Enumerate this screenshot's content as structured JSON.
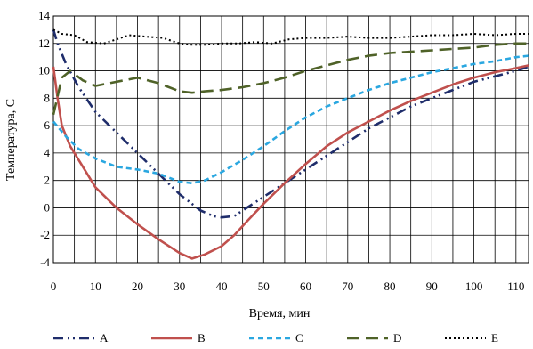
{
  "chart_data": {
    "type": "line",
    "title": "",
    "xlabel": "Время, мин",
    "ylabel": "Температура, С",
    "xlim": [
      0,
      113
    ],
    "ylim": [
      -4,
      14
    ],
    "x_ticks": [
      0,
      10,
      20,
      30,
      40,
      50,
      60,
      70,
      80,
      90,
      100,
      110
    ],
    "y_ticks": [
      -4,
      -2,
      0,
      2,
      4,
      6,
      8,
      10,
      12,
      14
    ],
    "grid": true,
    "legend_position": "bottom",
    "series": [
      {
        "name": "A",
        "color": "#1f2d6b",
        "dash": "dash-dot-dot",
        "points": [
          [
            0,
            13.0
          ],
          [
            1,
            12.0
          ],
          [
            3,
            10.5
          ],
          [
            6,
            8.8
          ],
          [
            10,
            7.0
          ],
          [
            15,
            5.5
          ],
          [
            20,
            4.0
          ],
          [
            25,
            2.5
          ],
          [
            30,
            1.0
          ],
          [
            35,
            -0.2
          ],
          [
            38,
            -0.6
          ],
          [
            40,
            -0.7
          ],
          [
            43,
            -0.6
          ],
          [
            46,
            0.0
          ],
          [
            50,
            0.8
          ],
          [
            55,
            1.8
          ],
          [
            60,
            2.8
          ],
          [
            65,
            3.8
          ],
          [
            70,
            4.8
          ],
          [
            75,
            5.8
          ],
          [
            80,
            6.6
          ],
          [
            85,
            7.4
          ],
          [
            90,
            8.0
          ],
          [
            95,
            8.6
          ],
          [
            100,
            9.2
          ],
          [
            105,
            9.6
          ],
          [
            110,
            10.0
          ],
          [
            113,
            10.3
          ]
        ]
      },
      {
        "name": "B",
        "color": "#c0504d",
        "dash": "solid",
        "points": [
          [
            0,
            10.3
          ],
          [
            1,
            8.0
          ],
          [
            2,
            6.0
          ],
          [
            4,
            4.5
          ],
          [
            7,
            3.0
          ],
          [
            10,
            1.5
          ],
          [
            15,
            0.0
          ],
          [
            20,
            -1.2
          ],
          [
            25,
            -2.3
          ],
          [
            30,
            -3.3
          ],
          [
            33,
            -3.7
          ],
          [
            36,
            -3.4
          ],
          [
            40,
            -2.8
          ],
          [
            43,
            -2.0
          ],
          [
            46,
            -1.0
          ],
          [
            50,
            0.3
          ],
          [
            55,
            1.8
          ],
          [
            60,
            3.2
          ],
          [
            65,
            4.5
          ],
          [
            70,
            5.5
          ],
          [
            75,
            6.3
          ],
          [
            80,
            7.1
          ],
          [
            85,
            7.8
          ],
          [
            90,
            8.4
          ],
          [
            95,
            9.0
          ],
          [
            100,
            9.5
          ],
          [
            105,
            9.9
          ],
          [
            110,
            10.2
          ],
          [
            113,
            10.4
          ]
        ]
      },
      {
        "name": "C",
        "color": "#2aa7e0",
        "dash": "dashed",
        "points": [
          [
            0,
            6.3
          ],
          [
            3,
            5.2
          ],
          [
            6,
            4.3
          ],
          [
            10,
            3.6
          ],
          [
            15,
            3.0
          ],
          [
            20,
            2.8
          ],
          [
            25,
            2.5
          ],
          [
            30,
            1.9
          ],
          [
            33,
            1.8
          ],
          [
            36,
            2.0
          ],
          [
            40,
            2.6
          ],
          [
            45,
            3.5
          ],
          [
            50,
            4.5
          ],
          [
            55,
            5.6
          ],
          [
            60,
            6.6
          ],
          [
            65,
            7.4
          ],
          [
            70,
            8.0
          ],
          [
            75,
            8.6
          ],
          [
            80,
            9.1
          ],
          [
            85,
            9.5
          ],
          [
            90,
            9.9
          ],
          [
            95,
            10.2
          ],
          [
            100,
            10.5
          ],
          [
            105,
            10.7
          ],
          [
            110,
            11.0
          ],
          [
            113,
            11.1
          ]
        ]
      },
      {
        "name": "D",
        "color": "#4f6228",
        "dash": "long-dash",
        "points": [
          [
            0,
            6.8
          ],
          [
            2,
            9.5
          ],
          [
            4,
            10.0
          ],
          [
            7,
            9.3
          ],
          [
            10,
            8.9
          ],
          [
            15,
            9.2
          ],
          [
            20,
            9.5
          ],
          [
            25,
            9.1
          ],
          [
            30,
            8.5
          ],
          [
            33,
            8.4
          ],
          [
            36,
            8.5
          ],
          [
            40,
            8.6
          ],
          [
            45,
            8.8
          ],
          [
            50,
            9.1
          ],
          [
            55,
            9.5
          ],
          [
            60,
            10.0
          ],
          [
            65,
            10.4
          ],
          [
            70,
            10.8
          ],
          [
            75,
            11.1
          ],
          [
            80,
            11.3
          ],
          [
            85,
            11.4
          ],
          [
            90,
            11.5
          ],
          [
            95,
            11.6
          ],
          [
            100,
            11.7
          ],
          [
            105,
            11.9
          ],
          [
            110,
            12.0
          ],
          [
            113,
            12.0
          ]
        ]
      },
      {
        "name": "E",
        "color": "#000000",
        "dash": "dotted",
        "points": [
          [
            0,
            13.0
          ],
          [
            2,
            12.7
          ],
          [
            5,
            12.6
          ],
          [
            8,
            12.1
          ],
          [
            12,
            12.0
          ],
          [
            15,
            12.3
          ],
          [
            18,
            12.6
          ],
          [
            22,
            12.5
          ],
          [
            26,
            12.4
          ],
          [
            30,
            12.0
          ],
          [
            33,
            11.9
          ],
          [
            36,
            11.9
          ],
          [
            40,
            12.0
          ],
          [
            44,
            12.0
          ],
          [
            48,
            12.1
          ],
          [
            52,
            12.0
          ],
          [
            56,
            12.3
          ],
          [
            60,
            12.4
          ],
          [
            65,
            12.4
          ],
          [
            70,
            12.5
          ],
          [
            75,
            12.4
          ],
          [
            80,
            12.4
          ],
          [
            85,
            12.5
          ],
          [
            90,
            12.6
          ],
          [
            95,
            12.6
          ],
          [
            100,
            12.7
          ],
          [
            105,
            12.6
          ],
          [
            110,
            12.7
          ],
          [
            113,
            12.7
          ]
        ]
      }
    ]
  }
}
